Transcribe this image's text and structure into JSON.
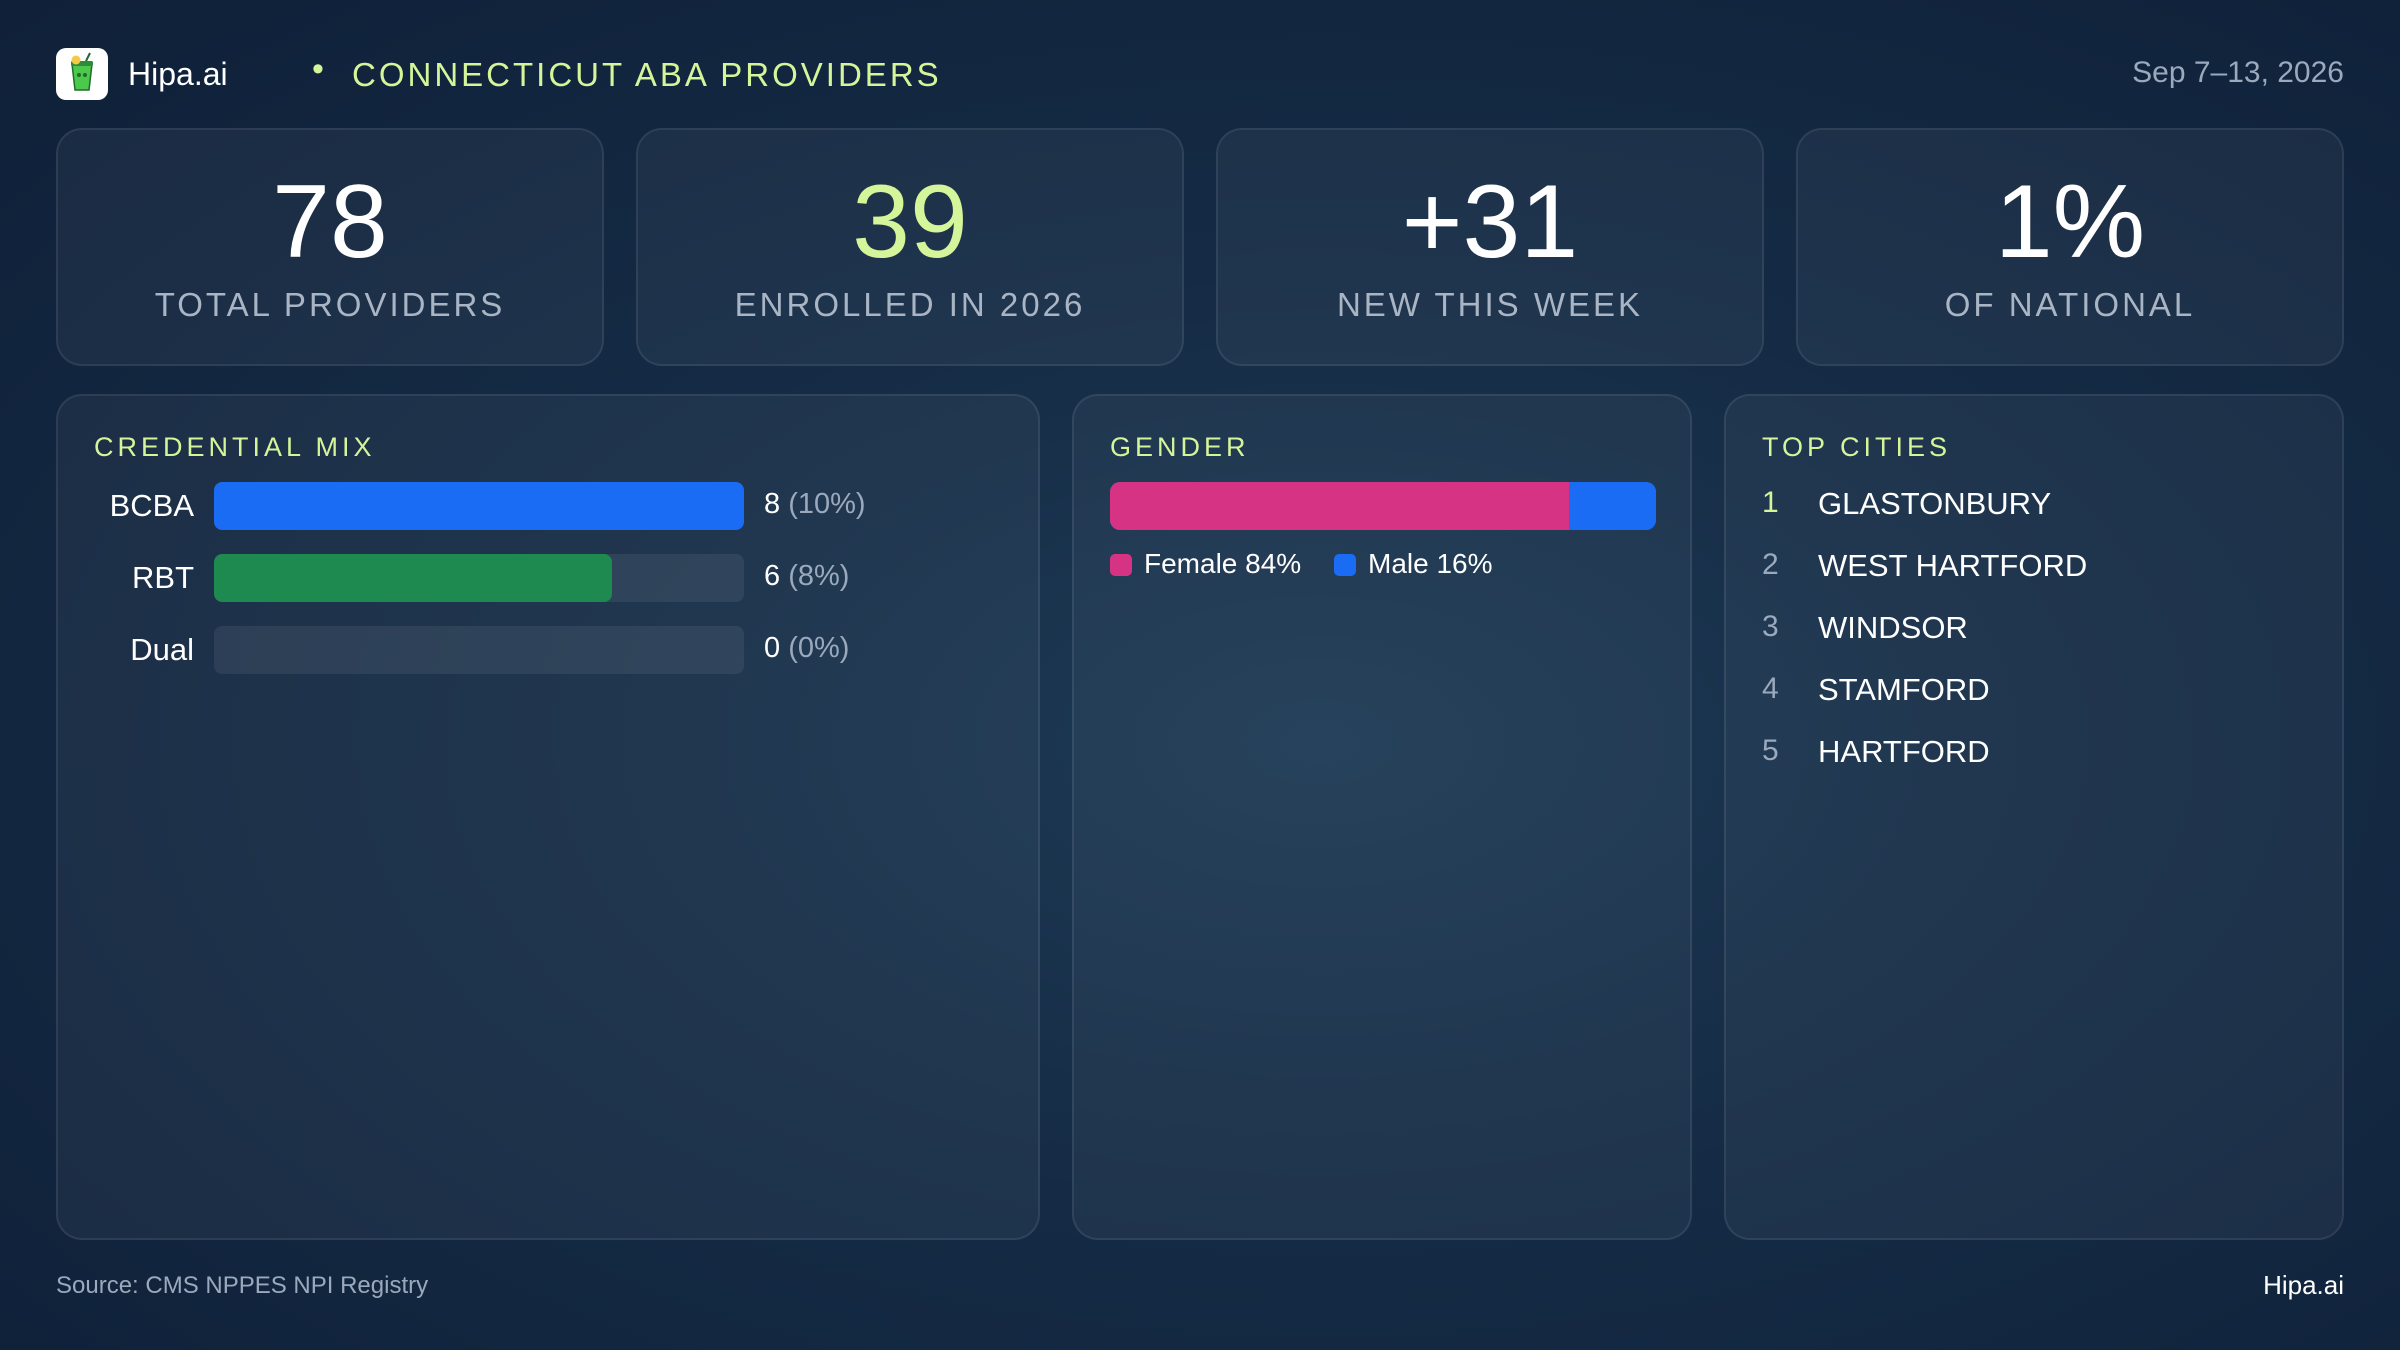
{
  "header": {
    "brand": "Hipa.ai",
    "separator": "•",
    "title": "CONNECTICUT ABA PROVIDERS",
    "date_range": "Sep 7–13, 2026",
    "logo_icon": "juice-cup-logo-icon"
  },
  "stats": [
    {
      "value": "78",
      "label": "TOTAL PROVIDERS",
      "color": "#ffffff"
    },
    {
      "value": "39",
      "label": "ENROLLED IN 2026",
      "color": "#d4f59a"
    },
    {
      "value": "+31",
      "label": "NEW THIS WEEK",
      "color": "#ffffff"
    },
    {
      "value": "1%",
      "label": "OF NATIONAL",
      "color": "#ffffff"
    }
  ],
  "credential": {
    "title": "CREDENTIAL MIX"
  },
  "gender": {
    "title": "GENDER",
    "legend": [
      {
        "text": "Female 84%",
        "color": "#d63384"
      },
      {
        "text": "Male 16%",
        "color": "#1a6cf5"
      }
    ]
  },
  "cities": {
    "title": "TOP CITIES",
    "items": [
      {
        "rank": "1",
        "name": "GLASTONBURY"
      },
      {
        "rank": "2",
        "name": "WEST HARTFORD"
      },
      {
        "rank": "3",
        "name": "WINDSOR"
      },
      {
        "rank": "4",
        "name": "STAMFORD"
      },
      {
        "rank": "5",
        "name": "HARTFORD"
      }
    ]
  },
  "chart_data": [
    {
      "type": "bar",
      "title": "CREDENTIAL MIX",
      "categories": [
        "BCBA",
        "RBT",
        "Dual"
      ],
      "values": [
        8,
        6,
        0
      ],
      "value_labels": [
        "8",
        "6",
        "0"
      ],
      "percent_labels": [
        "(10%)",
        "(8%)",
        "(0%)"
      ],
      "bar_fill_fraction": [
        1.0,
        0.75,
        0.0
      ],
      "colors": [
        "#1a6cf5",
        "#1e8a50",
        "#2f4157"
      ]
    },
    {
      "type": "bar",
      "title": "GENDER",
      "categories": [
        "Female",
        "Male"
      ],
      "values": [
        84,
        16
      ],
      "colors": [
        "#d63384",
        "#1a6cf5"
      ]
    }
  ],
  "footer": {
    "source": "Source: CMS NPPES NPI Registry",
    "brand": "Hipa.ai"
  }
}
